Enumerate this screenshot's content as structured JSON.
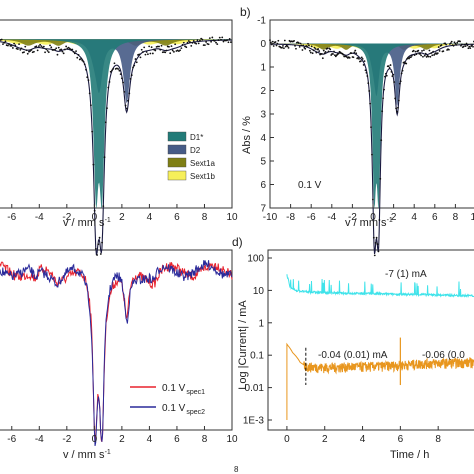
{
  "chart_data": [
    {
      "type": "line",
      "panel": "a",
      "xlabel": "v / mm s",
      "xlabel_sup": "-1",
      "xlim": [
        -7,
        10
      ],
      "xticks": [
        "-6",
        "-4",
        "-2",
        "0",
        "2",
        "4",
        "6",
        "8",
        "10"
      ],
      "fill_colors": {
        "Sext1b": "#f6ef5a",
        "Sext1a": "#7f7f14",
        "D2": "#465b86",
        "D1*": "#227b78"
      },
      "legend": [
        {
          "name": "D1*",
          "color": "#227b78"
        },
        {
          "name": "D2",
          "color": "#465b86"
        },
        {
          "name": "Sext1a",
          "color": "#7f7f14"
        },
        {
          "name": "Sext1b",
          "color": "#f6ef5a"
        }
      ]
    },
    {
      "type": "line",
      "panel": "b",
      "panel_label": "b)",
      "ylabel": "Abs / %",
      "xlabel": "v / mm s",
      "xlabel_sup": "-1",
      "xlim": [
        -10,
        10
      ],
      "ylim": [
        7,
        -1
      ],
      "xticks": [
        "-10",
        "-8",
        "-6",
        "-4",
        "-2",
        "0",
        "2",
        "4",
        "6",
        "8",
        "10"
      ],
      "yticks": [
        "-1",
        "0",
        "1",
        "2",
        "3",
        "4",
        "5",
        "6",
        "7"
      ],
      "annotation": "0.1 V"
    },
    {
      "type": "line",
      "panel": "c",
      "xlabel": "v / mm s",
      "xlabel_sup": "-1",
      "xlim": [
        -7,
        10
      ],
      "xticks": [
        "-6",
        "-4",
        "-2",
        "0",
        "2",
        "4",
        "6",
        "8",
        "10"
      ],
      "series": [
        {
          "name": "0.1 V",
          "sub": "spec1",
          "color": "#e8222d"
        },
        {
          "name": "0.1 V",
          "sub": "spec2",
          "color": "#2a2a9a"
        }
      ]
    },
    {
      "type": "line",
      "panel": "d",
      "panel_label": "d)",
      "ylabel": "Log |Current| / mA",
      "xlabel": "Time / h",
      "xlim": [
        -1,
        10
      ],
      "ylim": [
        0.001,
        100
      ],
      "y_scale": "log",
      "xticks": [
        "0",
        "2",
        "4",
        "6",
        "8"
      ],
      "yticks": [
        "1E-3",
        "0.01",
        "0.1",
        "1",
        "10",
        "100"
      ],
      "annotations": [
        "-7 (1) mA",
        "-0.04 (0.01) mA",
        "-0.06 (0.0"
      ],
      "series": [
        {
          "color": "#3fe3ea",
          "x": [
            0,
            0.15,
            0.5,
            1,
            2,
            3,
            4,
            5,
            6,
            7,
            8,
            9,
            10
          ],
          "y": [
            30,
            12,
            10,
            9,
            8.5,
            8.2,
            8,
            7.8,
            7.6,
            7.5,
            7.2,
            7,
            6.8
          ]
        },
        {
          "color": "#e8961e",
          "x": [
            0,
            0.05,
            0.3,
            0.7,
            1.0,
            2,
            3,
            4,
            5,
            6,
            7,
            8,
            9,
            10
          ],
          "y": [
            0.22,
            0.2,
            0.12,
            0.06,
            0.045,
            0.042,
            0.044,
            0.045,
            0.047,
            0.05,
            0.055,
            0.058,
            0.06,
            0.061
          ]
        }
      ],
      "step_markers_h": [
        1,
        6
      ]
    }
  ],
  "footer": {
    "page_number": "8"
  }
}
